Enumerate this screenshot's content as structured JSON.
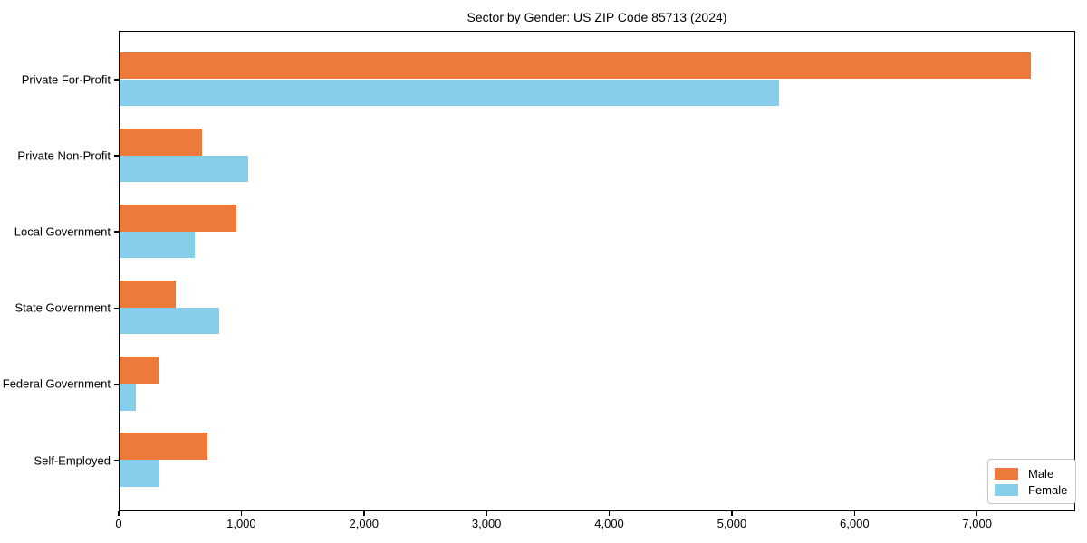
{
  "title": "Sector by Gender: US ZIP Code 85713 (2024)",
  "colors": {
    "male": "#EB7A3B",
    "female": "#87CEEB",
    "axis": "#000000",
    "legend_border": "#C7C7C7",
    "background": "#FFFFFF"
  },
  "legend": {
    "position": "lower right",
    "items": [
      {
        "label": "Male",
        "color": "#EB7A3B"
      },
      {
        "label": "Female",
        "color": "#87CEEB"
      }
    ]
  },
  "chart_data": {
    "type": "bar",
    "orientation": "horizontal",
    "title": "Sector by Gender: US ZIP Code 85713 (2024)",
    "xlabel": "",
    "ylabel": "",
    "grid": false,
    "legend_position": "lower right",
    "categories": [
      "Private For-Profit",
      "Private Non-Profit",
      "Local Government",
      "State Government",
      "Federal Government",
      "Self-Employed"
    ],
    "series": [
      {
        "name": "Male",
        "color": "#EB7A3B",
        "values": [
          7430,
          675,
          955,
          460,
          320,
          720
        ]
      },
      {
        "name": "Female",
        "color": "#87CEEB",
        "values": [
          5380,
          1050,
          615,
          815,
          135,
          325
        ]
      }
    ],
    "xlim": [
      0,
      7800
    ],
    "xticks": [
      0,
      1000,
      2000,
      3000,
      4000,
      5000,
      6000,
      7000
    ],
    "xtick_labels": [
      "0",
      "1,000",
      "2,000",
      "3,000",
      "4,000",
      "5,000",
      "6,000",
      "7,000"
    ]
  }
}
